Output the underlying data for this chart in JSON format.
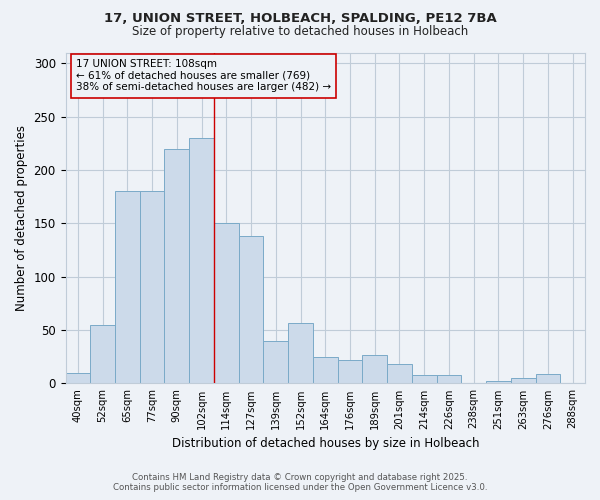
{
  "title_line1": "17, UNION STREET, HOLBEACH, SPALDING, PE12 7BA",
  "title_line2": "Size of property relative to detached houses in Holbeach",
  "xlabel": "Distribution of detached houses by size in Holbeach",
  "ylabel": "Number of detached properties",
  "categories": [
    "40sqm",
    "52sqm",
    "65sqm",
    "77sqm",
    "90sqm",
    "102sqm",
    "114sqm",
    "127sqm",
    "139sqm",
    "152sqm",
    "164sqm",
    "176sqm",
    "189sqm",
    "201sqm",
    "214sqm",
    "226sqm",
    "238sqm",
    "251sqm",
    "263sqm",
    "276sqm",
    "288sqm"
  ],
  "values": [
    10,
    55,
    180,
    180,
    220,
    230,
    150,
    138,
    40,
    57,
    25,
    22,
    27,
    18,
    8,
    8,
    0,
    2,
    5,
    9,
    0
  ],
  "bar_color": "#ccdaea",
  "bar_edge_color": "#7aaac8",
  "property_label": "17 UNION STREET: 108sqm",
  "stat_line1": "← 61% of detached houses are smaller (769)",
  "stat_line2": "38% of semi-detached houses are larger (482) →",
  "vline_color": "#cc0000",
  "annotation_box_edge_color": "#cc0000",
  "footnote1": "Contains HM Land Registry data © Crown copyright and database right 2025.",
  "footnote2": "Contains public sector information licensed under the Open Government Licence v3.0.",
  "ylim": [
    0,
    310
  ],
  "grid_color": "#c0ccd8",
  "bg_color": "#eef2f7"
}
